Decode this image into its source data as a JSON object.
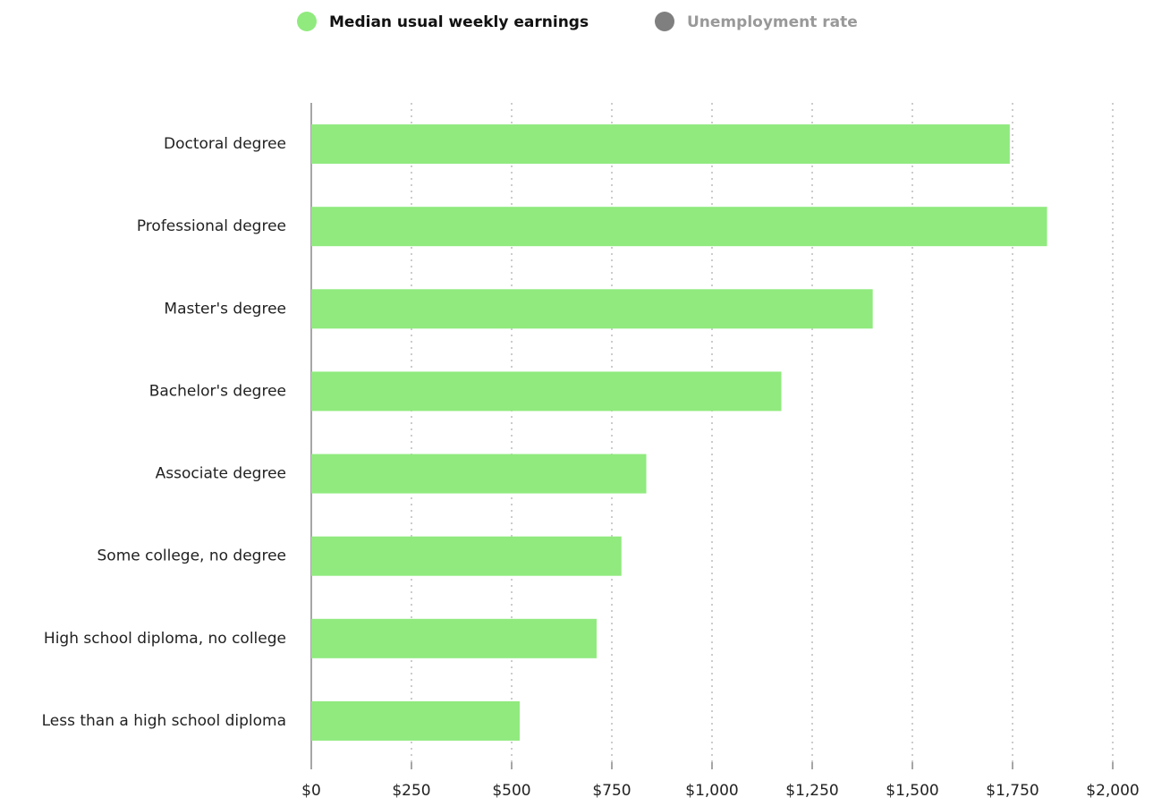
{
  "chart_data": {
    "type": "bar",
    "orientation": "horizontal",
    "categories": [
      "Doctoral degree",
      "Professional degree",
      "Master's degree",
      "Bachelor's degree",
      "Associate degree",
      "Some college, no degree",
      "High school diploma, no college",
      "Less than a high school diploma"
    ],
    "series": [
      {
        "name": "Median usual weekly earnings",
        "color": "#90ea7e",
        "values": [
          1743,
          1836,
          1401,
          1173,
          836,
          774,
          712,
          520
        ]
      },
      {
        "name": "Unemployment rate",
        "color": "#7f7f7f",
        "hidden": true
      }
    ],
    "xlim": [
      0,
      2000
    ],
    "xticks": [
      {
        "value": 0,
        "label": "$0"
      },
      {
        "value": 250,
        "label": "$250"
      },
      {
        "value": 500,
        "label": "$500"
      },
      {
        "value": 750,
        "label": "$750"
      },
      {
        "value": 1000,
        "label": "$1,000"
      },
      {
        "value": 1250,
        "label": "$1,250"
      },
      {
        "value": 1500,
        "label": "$1,500"
      },
      {
        "value": 1750,
        "label": "$1,750"
      },
      {
        "value": 2000,
        "label": "$2,000"
      }
    ],
    "grid": true
  }
}
